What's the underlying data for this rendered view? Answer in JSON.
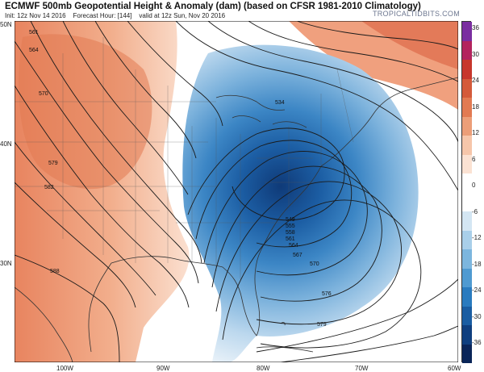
{
  "header": {
    "title": "ECMWF 500mb Geopotential Height & Anomaly (dam) (based on CFSR 1981-2010 Climatology)",
    "init": "Init: 12z Nov 14 2016",
    "forecast_hour": "Forecast Hour: [144]",
    "valid": "valid at 12z Sun, Nov 20 2016",
    "brand": "TROPICALTIDBITS.COM"
  },
  "axes": {
    "lat_labels": [
      "50N",
      "40N",
      "30N"
    ],
    "lon_labels": [
      "100W",
      "90W",
      "80W",
      "70W",
      "60W"
    ]
  },
  "colorbar": {
    "labels": [
      "36",
      "30",
      "24",
      "18",
      "12",
      "6",
      "0",
      "-6",
      "-12",
      "-18",
      "-24",
      "-30",
      "-36"
    ],
    "colors": [
      "#7a2ea0",
      "#b3245e",
      "#c7372c",
      "#d45a3a",
      "#e27a52",
      "#ec9e78",
      "#f6c6aa",
      "#fbe2d3",
      "#ffffff",
      "#ffffff",
      "#d4e6f3",
      "#a9cfe9",
      "#7cb6de",
      "#4f9ad1",
      "#2a7bbf",
      "#1a5da2",
      "#0f3f7f",
      "#0a2558"
    ]
  },
  "contours": {
    "values": [
      "561",
      "564",
      "570",
      "579",
      "582",
      "588",
      "534",
      "549",
      "555",
      "558",
      "561",
      "564",
      "567",
      "570",
      "576",
      "579"
    ],
    "colors": {
      "warm_anomaly": "#e98a64",
      "cold_anomaly": "#2e7fc3",
      "contour_line": "#222222",
      "state_lines": "#444444"
    }
  }
}
